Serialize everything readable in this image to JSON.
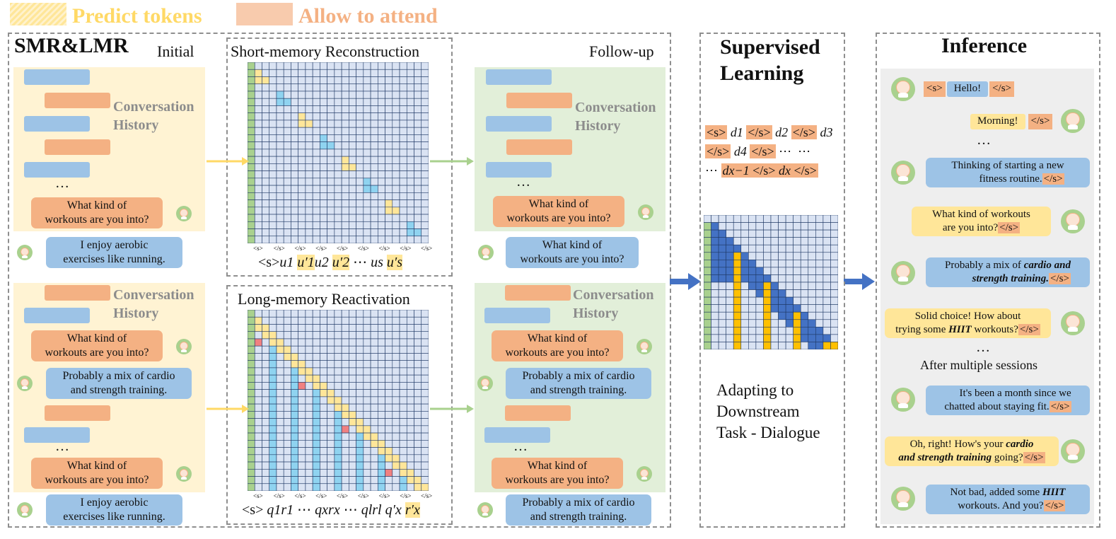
{
  "legend": {
    "predict": "Predict tokens",
    "attend": "Allow to attend"
  },
  "smr": {
    "title": "SMR&LMR",
    "initial": "Initial",
    "followup": "Follow-up",
    "hist_line1": "Conversation",
    "hist_line2": "History",
    "dots": "…",
    "top_initial_q": [
      "What kind of",
      "workouts are you into?"
    ],
    "top_initial_a": [
      "I enjoy aerobic",
      "exercises like running."
    ],
    "top_follow_q": [
      "What kind of",
      "workouts are you into?"
    ],
    "top_follow_a": [
      "What kind of",
      "workouts are you into?"
    ],
    "bot_initial_q1": [
      "What kind of",
      "workouts are you into?"
    ],
    "bot_initial_a1": [
      "Probably a mix of cardio",
      "and strength training."
    ],
    "bot_initial_q2": [
      "What kind of",
      "workouts are you into?"
    ],
    "bot_initial_a2": [
      "I enjoy aerobic",
      "exercises like running."
    ],
    "bot_follow_q1": [
      "What kind of",
      "workouts are you into?"
    ],
    "bot_follow_a1": [
      "Probably a mix of cardio",
      "and strength training."
    ],
    "bot_follow_q2": [
      "What kind of",
      "workouts are you into?"
    ],
    "bot_follow_a2": [
      "Probably a mix of cardio",
      "and strength training."
    ]
  },
  "short_memory": {
    "title": "Short-memory Reconstruction",
    "axis_tokens": [
      "<s>",
      "</s>",
      "</s>",
      "</s>",
      "</s>",
      "</s>",
      "</s>",
      "</s>",
      "</s>"
    ],
    "sequence": [
      "<s>",
      "u1",
      "u′1",
      "u2",
      "u′2",
      "⋯",
      "us",
      "u′s"
    ]
  },
  "long_memory": {
    "title": "Long-memory Reactivation",
    "axis_tokens": [
      "<s>",
      "</s>",
      "</s>",
      "</s>",
      "</s>",
      "</s>",
      "</s>",
      "</s>",
      "</s>"
    ],
    "sequence": [
      "<s>",
      "q1",
      "r1",
      "⋯",
      "qx",
      "rx",
      "⋯",
      "ql",
      "rl",
      "q′x",
      "r′x"
    ]
  },
  "supervised": {
    "title_line1": "Supervised",
    "title_line2": "Learning",
    "seq_line1": [
      "<s>",
      "d1",
      "</s>",
      "d2",
      "</s>",
      "d3"
    ],
    "seq_line2": [
      "</s>",
      "d4",
      "</s>",
      "⋯",
      "⋯"
    ],
    "seq_line3": [
      "⋯",
      "dx−1",
      "</s>",
      "dx",
      "</s>"
    ],
    "adapt_line1": "Adapting to",
    "adapt_line2": "Downstream",
    "adapt_line3": "Task - Dialogue"
  },
  "inference": {
    "title": "Inference",
    "eos": "</s>",
    "bos": "<s>",
    "m1": "Hello!",
    "m2": "Morning!",
    "dots": "…",
    "m3_l1": "Thinking of starting a new",
    "m3_l2": "fitness routine.",
    "m4_l1": "What kind of workouts",
    "m4_l2": "are you into?",
    "m5_l1": "Probably a mix of ",
    "m5_b1": "cardio and",
    "m5_b2": "strength training.",
    "m6_l1": "Solid choice! How about",
    "m6_l2a": "trying some ",
    "m6_b": "HIIT",
    "m6_l2b": " workouts?",
    "after": "After multiple sessions",
    "m7_l1": "It's been a month since we",
    "m7_l2": "chatted about staying fit.",
    "m8_l1a": "Oh, right! How's your ",
    "m8_b1": "cardio",
    "m8_b2": "and strength training",
    "m8_l2b": " going?",
    "m9_l1a": "Not bad, added some ",
    "m9_b": "HIIT",
    "m9_l2": "workouts. And you?"
  },
  "colors": {
    "predict": "#ffe699",
    "attend": "#f4b183",
    "blue": "#9dc3e6",
    "green": "#a9d18e",
    "grid": "#dae3f3",
    "cyan": "#8fd3f0",
    "dark_blue": "#4472c4",
    "gold": "#ffc000",
    "pink": "#f08080"
  },
  "icons": {
    "avatar": "avatar-icon",
    "arrow": "arrow-right-icon"
  }
}
